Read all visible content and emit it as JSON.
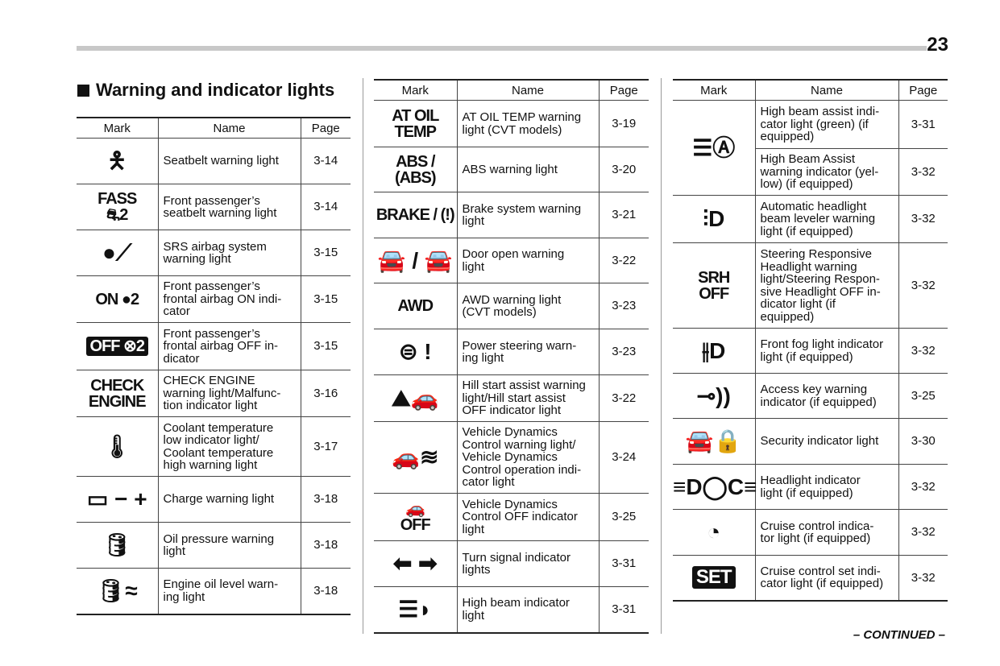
{
  "page_number": "23",
  "section_title": "Warning and indicator lights",
  "headers": {
    "mark": "Mark",
    "name": "Name",
    "page": "Page"
  },
  "tables": [
    {
      "rows": [
        {
          "icon": "seatbelt-icon",
          "icon_text": "🯅",
          "name": "Seatbelt warning light",
          "page": "3-14"
        },
        {
          "icon": "passenger-seatbelt-icon",
          "icon_text": "FASS\n⛐2",
          "name": "Front passenger’s\nseatbelt warning light",
          "page": "3-14"
        },
        {
          "icon": "airbag-icon",
          "icon_text": "●⟋",
          "name": "SRS airbag system\nwarning light",
          "page": "3-15"
        },
        {
          "icon": "passenger-airbag-on-icon",
          "icon_text": "ON ●2",
          "name": "Front passenger’s\nfrontal airbag ON indi-\ncator",
          "page": "3-15"
        },
        {
          "icon": "passenger-airbag-off-icon",
          "icon_text": "OFF ⊗2",
          "name": "Front passenger’s\nfrontal airbag OFF in-\ndicator",
          "page": "3-15"
        },
        {
          "icon": "check-engine-icon",
          "icon_text": "CHECK\nENGINE",
          "name": "CHECK ENGINE\nwarning light/Malfunc-\ntion indicator light",
          "page": "3-16"
        },
        {
          "icon": "coolant-temperature-icon",
          "icon_text": "🌡",
          "name": "Coolant temperature\nlow indicator light/\nCoolant temperature\nhigh warning light",
          "page": "3-17"
        },
        {
          "icon": "battery-icon",
          "icon_text": "▭ − +",
          "name": "Charge warning light",
          "page": "3-18"
        },
        {
          "icon": "oil-pressure-icon",
          "icon_text": "🛢",
          "name": "Oil pressure warning\nlight",
          "page": "3-18"
        },
        {
          "icon": "oil-level-icon",
          "icon_text": "🛢≈",
          "name": "Engine oil level warn-\ning light",
          "page": "3-18"
        }
      ]
    },
    {
      "rows": [
        {
          "icon": "at-oil-temp-icon",
          "icon_text": "AT OIL\nTEMP",
          "name": "AT OIL TEMP warning\nlight (CVT models)",
          "page": "3-19"
        },
        {
          "icon": "abs-icon",
          "icon_text": "ABS / (ABS)",
          "name": "ABS warning light",
          "page": "3-20"
        },
        {
          "icon": "brake-icon",
          "icon_text": "BRAKE / (!)",
          "name": "Brake system warning\nlight",
          "page": "3-21"
        },
        {
          "icon": "door-open-icon",
          "icon_text": "🚘 / 🚘",
          "name": "Door open warning\nlight",
          "page": "3-22"
        },
        {
          "icon": "awd-icon",
          "icon_text": "AWD",
          "name": "AWD warning light\n(CVT models)",
          "page": "3-23"
        },
        {
          "icon": "power-steering-icon",
          "icon_text": "⊜ !",
          "name": "Power steering warn-\ning light",
          "page": "3-23"
        },
        {
          "icon": "hill-start-icon",
          "icon_text": "⛰🚗",
          "name": "Hill start assist warning\nlight/Hill start assist\nOFF indicator light",
          "page": "3-22"
        },
        {
          "icon": "vehicle-dynamics-icon",
          "icon_text": "🚗≋",
          "name": "Vehicle Dynamics\nControl warning light/\nVehicle Dynamics\nControl operation indi-\ncator light",
          "page": "3-24"
        },
        {
          "icon": "vehicle-dynamics-off-icon",
          "icon_text": "🚗\nOFF",
          "name": "Vehicle Dynamics\nControl OFF indicator\nlight",
          "page": "3-25"
        },
        {
          "icon": "turn-signal-icon",
          "icon_text": "⬅ ➡",
          "name": "Turn signal indicator\nlights",
          "page": "3-31"
        },
        {
          "icon": "high-beam-icon",
          "icon_text": "☰◗",
          "name": "High beam indicator\nlight",
          "page": "3-31"
        }
      ]
    },
    {
      "rows": [
        {
          "icon": "high-beam-assist-icon",
          "icon_text": "☰Ⓐ",
          "rowspan": 2,
          "name": "High beam assist indi-\ncator light (green) (if\nequipped)",
          "page": "3-31"
        },
        {
          "name": "High Beam Assist\nwarning indicator (yel-\nlow) (if equipped)",
          "page": "3-32"
        },
        {
          "icon": "headlight-leveler-icon",
          "icon_text": "⫶D",
          "name": "Automatic headlight\nbeam leveler warning\nlight (if equipped)",
          "page": "3-32"
        },
        {
          "icon": "srh-off-icon",
          "icon_text": "SRH\nOFF",
          "name": "Steering Responsive\nHeadlight warning\nlight/Steering Respon-\nsive Headlight OFF in-\ndicator light (if\nequipped)",
          "page": "3-32"
        },
        {
          "icon": "front-fog-icon",
          "icon_text": "⫲D",
          "name": "Front fog light indicator\nlight (if equipped)",
          "page": "3-32"
        },
        {
          "icon": "access-key-icon",
          "icon_text": "⊸))",
          "name": "Access key warning\nindicator (if equipped)",
          "page": "3-25"
        },
        {
          "icon": "security-icon",
          "icon_text": "🚘🔒",
          "name": "Security indicator light",
          "page": "3-30"
        },
        {
          "icon": "headlight-indicator-icon",
          "icon_text": "≡D◯C≡",
          "name": "Headlight indicator\nlight (if equipped)",
          "page": "3-32"
        },
        {
          "icon": "cruise-control-icon",
          "icon_text": "◔",
          "name": "Cruise control indica-\ntor light (if equipped)",
          "page": "3-32"
        },
        {
          "icon": "cruise-set-icon",
          "icon_text": "SET",
          "name": "Cruise control set indi-\ncator light (if equipped)",
          "page": "3-32"
        }
      ]
    }
  ],
  "continued": "– CONTINUED –"
}
